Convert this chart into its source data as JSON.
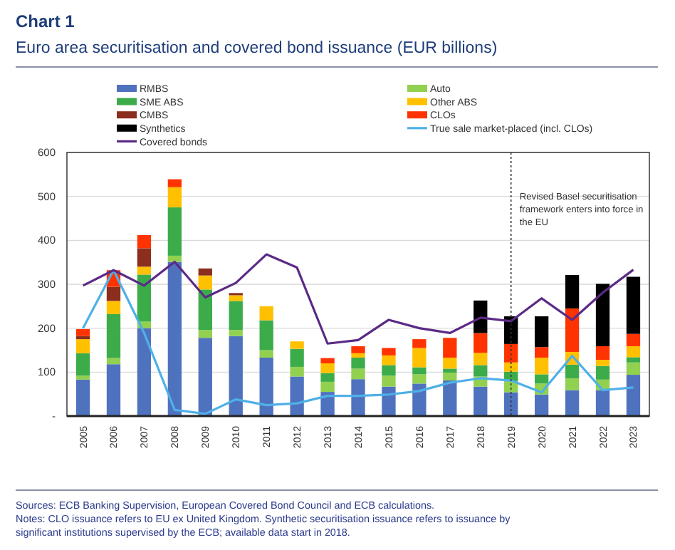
{
  "chart_data": {
    "type": "bar",
    "title": "Chart 1",
    "subtitle": "Euro area securitisation and covered bond issuance (EUR billions)",
    "categories": [
      "2005",
      "2006",
      "2007",
      "2008",
      "2009",
      "2010",
      "2011",
      "2012",
      "2013",
      "2014",
      "2015",
      "2016",
      "2017",
      "2018",
      "2019",
      "2020",
      "2021",
      "2022",
      "2023"
    ],
    "stacked": true,
    "series": [
      {
        "name": "RMBS",
        "color": "#4f72be",
        "values": [
          83,
          118,
          200,
          351,
          178,
          182,
          133,
          90,
          55,
          84,
          67,
          74,
          81,
          67,
          54,
          49,
          59,
          59,
          94
        ]
      },
      {
        "name": "Auto",
        "color": "#92d050",
        "values": [
          9,
          14,
          15,
          14,
          18,
          14,
          17,
          22,
          23,
          24,
          25,
          21,
          18,
          23,
          25,
          25,
          27,
          24,
          28
        ]
      },
      {
        "name": "SME ABS",
        "color": "#3cac4a",
        "values": [
          51,
          100,
          107,
          110,
          92,
          66,
          68,
          41,
          20,
          25,
          24,
          16,
          9,
          26,
          22,
          21,
          31,
          31,
          12
        ]
      },
      {
        "name": "Other ABS",
        "color": "#ffc000",
        "values": [
          32,
          30,
          18,
          46,
          32,
          13,
          32,
          17,
          22,
          10,
          22,
          44,
          25,
          28,
          21,
          38,
          29,
          14,
          25
        ]
      },
      {
        "name": "CMBS",
        "color": "#8b2e1e",
        "values": [
          7,
          32,
          42,
          0,
          16,
          5,
          0,
          0,
          0,
          0,
          0,
          0,
          0,
          0,
          0,
          0,
          0,
          0,
          0
        ]
      },
      {
        "name": "CLOs",
        "color": "#ff3300",
        "values": [
          16,
          38,
          30,
          18,
          0,
          0,
          0,
          0,
          12,
          16,
          17,
          20,
          45,
          45,
          42,
          24,
          99,
          31,
          28
        ]
      },
      {
        "name": "Synthetics",
        "color": "#000000",
        "values": [
          null,
          null,
          null,
          null,
          null,
          null,
          null,
          null,
          null,
          null,
          null,
          null,
          null,
          74,
          63,
          70,
          76,
          142,
          130
        ]
      },
      {
        "name": "True sale market-placed (incl. CLOs)",
        "type": "line",
        "color": "#4fb0e8",
        "values": [
          200,
          332,
          189,
          14,
          5,
          38,
          25,
          29,
          46,
          46,
          49,
          57,
          76,
          86,
          81,
          54,
          137,
          59,
          65
        ]
      },
      {
        "name": "Covered bonds",
        "type": "line",
        "color": "#5b2a86",
        "values": [
          297,
          332,
          297,
          351,
          270,
          303,
          368,
          338,
          165,
          173,
          219,
          200,
          189,
          224,
          216,
          268,
          219,
          281,
          333
        ]
      }
    ],
    "ylim": [
      0,
      600
    ],
    "yticks": [
      {
        "value": 0,
        "label": "-"
      },
      100,
      200,
      300,
      400,
      500,
      600
    ],
    "grid": "y",
    "legend": "top",
    "marker": "none",
    "line_style": "solid",
    "ref_lines": [
      {
        "axis": "x",
        "value": "2019",
        "label": "Revised Basel securitisation framework enters into force in the EU",
        "line_style": "dotted"
      }
    ],
    "annotations": [
      "Sources: ECB Banking Supervision, European Covered Bond Council and ECB calculations.",
      "Notes: CLO issuance refers to EU ex United Kingdom. Synthetic securitisation issuance refers to issuance by significant institutions supervised by the ECB; available data start in 2018."
    ]
  }
}
